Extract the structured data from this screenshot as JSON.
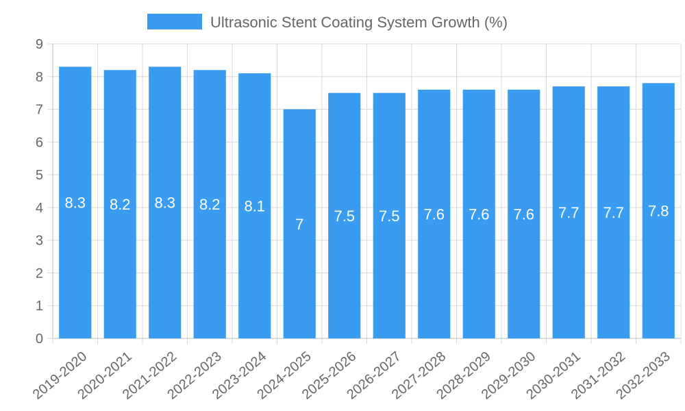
{
  "colors": {
    "bar": "#3a9cf0",
    "grid": "#d9d9d9",
    "text": "#666666",
    "label": "#ffffff"
  },
  "chart_data": {
    "type": "bar",
    "title": "",
    "xlabel": "",
    "ylabel": "",
    "legend": {
      "position": "top-center",
      "entries": [
        "Ultrasonic Stent Coating System Growth (%)"
      ]
    },
    "grid": true,
    "ylim": [
      0,
      9
    ],
    "yticks": [
      0,
      1,
      2,
      3,
      4,
      5,
      6,
      7,
      8,
      9
    ],
    "categories": [
      "2019-2020",
      "2020-2021",
      "2021-2022",
      "2022-2023",
      "2023-2024",
      "2024-2025",
      "2025-2026",
      "2026-2027",
      "2027-2028",
      "2028-2029",
      "2029-2030",
      "2030-2031",
      "2031-2032",
      "2032-2033"
    ],
    "series": [
      {
        "name": "Ultrasonic Stent Coating System Growth (%)",
        "values": [
          8.3,
          8.2,
          8.3,
          8.2,
          8.1,
          7,
          7.5,
          7.5,
          7.6,
          7.6,
          7.6,
          7.7,
          7.7,
          7.8
        ],
        "labels": [
          "8.3",
          "8.2",
          "8.3",
          "8.2",
          "8.1",
          "7",
          "7.5",
          "7.5",
          "7.6",
          "7.6",
          "7.6",
          "7.7",
          "7.7",
          "7.8"
        ]
      }
    ]
  }
}
